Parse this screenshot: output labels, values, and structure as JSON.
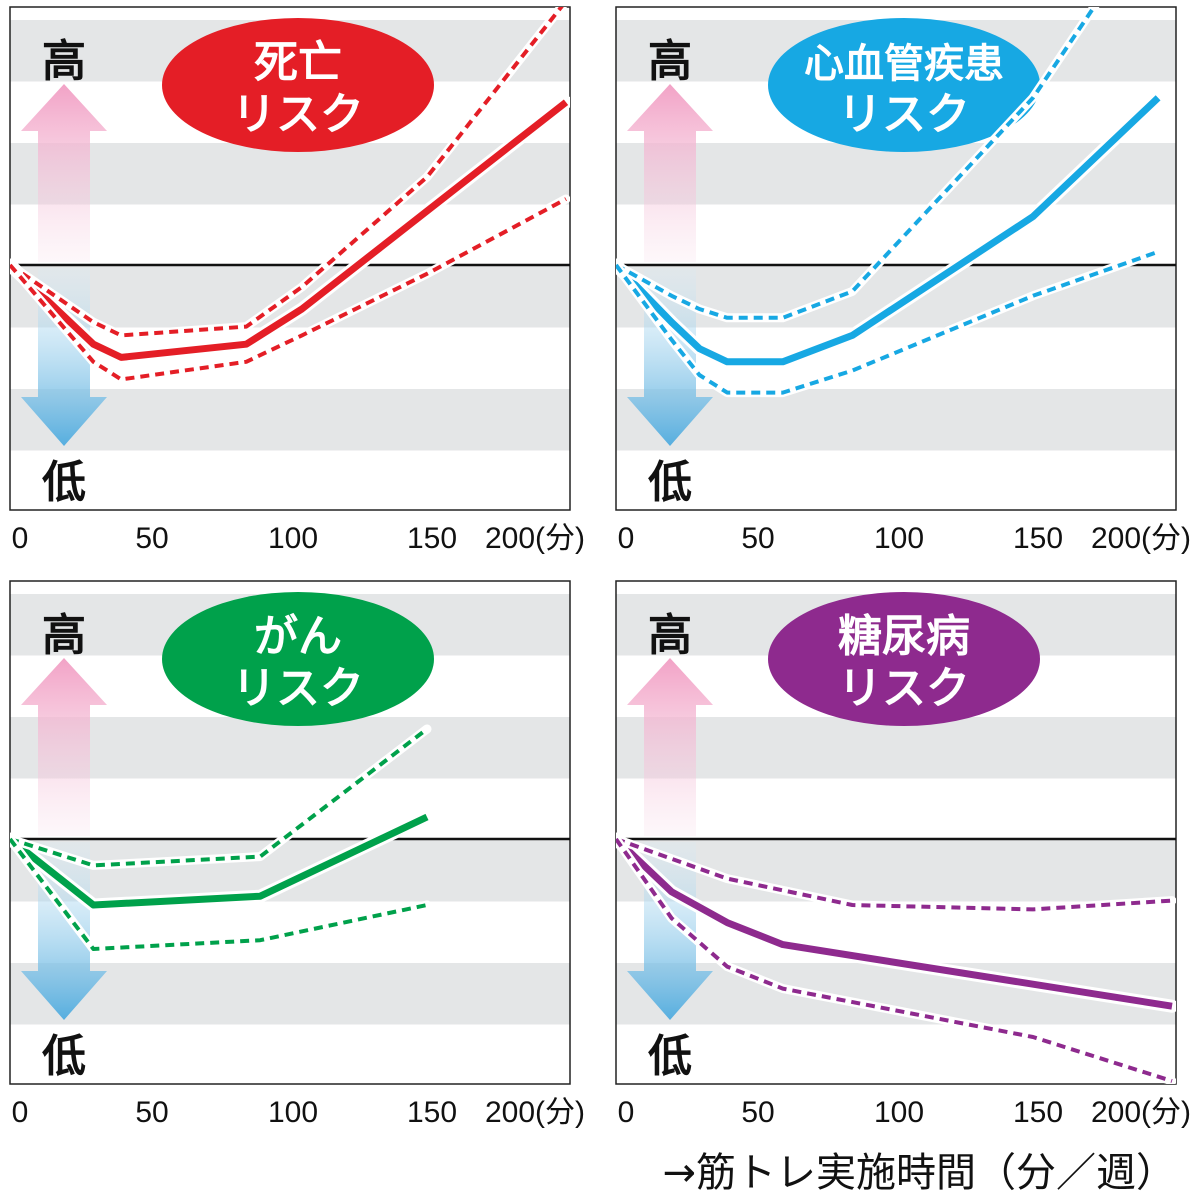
{
  "high_label": "高",
  "low_label": "低",
  "x_axis_caption": "→筋トレ実施時間（分／週）",
  "colors": {
    "red": "#e41e26",
    "blue": "#17a8e3",
    "green": "#00a14b",
    "purple": "#8e2a8e"
  },
  "chart_data": [
    {
      "type": "line",
      "badge": [
        "死亡",
        "リスク"
      ],
      "color": "#e41e26",
      "x_ticks": [
        "0",
        "50",
        "100",
        "150",
        "200(分)"
      ],
      "series": [
        {
          "role": "estimate",
          "x": [
            0,
            30,
            40,
            85,
            105,
            200
          ],
          "y": [
            1.0,
            0.82,
            0.79,
            0.82,
            0.9,
            1.37
          ]
        },
        {
          "role": "upper",
          "x": [
            0,
            30,
            40,
            85,
            105,
            150,
            200
          ],
          "y": [
            1.0,
            0.87,
            0.84,
            0.86,
            0.95,
            1.2,
            1.6
          ]
        },
        {
          "role": "lower",
          "x": [
            0,
            30,
            40,
            85,
            105,
            150,
            200
          ],
          "y": [
            1.0,
            0.78,
            0.74,
            0.78,
            0.84,
            0.98,
            1.15
          ]
        }
      ]
    },
    {
      "type": "line",
      "badge": [
        "心血管疾患",
        "リスク"
      ],
      "color": "#17a8e3",
      "x_ticks": [
        "0",
        "50",
        "100",
        "150",
        "200(分)"
      ],
      "series": [
        {
          "role": "estimate",
          "x": [
            0,
            20,
            30,
            40,
            60,
            85,
            150,
            195
          ],
          "y": [
            1.0,
            0.87,
            0.81,
            0.78,
            0.78,
            0.84,
            1.11,
            1.38
          ]
        },
        {
          "role": "upper",
          "x": [
            0,
            20,
            30,
            40,
            60,
            85,
            150,
            200
          ],
          "y": [
            1.0,
            0.93,
            0.9,
            0.88,
            0.88,
            0.94,
            1.38,
            1.85
          ]
        },
        {
          "role": "lower",
          "x": [
            0,
            20,
            30,
            40,
            60,
            85,
            150,
            195
          ],
          "y": [
            1.0,
            0.83,
            0.75,
            0.71,
            0.71,
            0.76,
            0.93,
            1.03
          ]
        }
      ]
    },
    {
      "type": "line",
      "badge": [
        "がん",
        "リスク"
      ],
      "color": "#00a14b",
      "x_ticks": [
        "0",
        "50",
        "100",
        "150",
        "200(分)"
      ],
      "series": [
        {
          "role": "estimate",
          "x": [
            0,
            30,
            90,
            150
          ],
          "y": [
            1.0,
            0.85,
            0.87,
            1.05
          ]
        },
        {
          "role": "upper",
          "x": [
            0,
            30,
            90,
            150
          ],
          "y": [
            1.0,
            0.94,
            0.96,
            1.25
          ]
        },
        {
          "role": "lower",
          "x": [
            0,
            30,
            90,
            150
          ],
          "y": [
            1.0,
            0.75,
            0.77,
            0.85
          ]
        }
      ]
    },
    {
      "type": "line",
      "badge": [
        "糖尿病",
        "リスク"
      ],
      "color": "#8e2a8e",
      "x_ticks": [
        "0",
        "50",
        "100",
        "150",
        "200(分)"
      ],
      "series": [
        {
          "role": "estimate",
          "x": [
            0,
            20,
            40,
            60,
            200
          ],
          "y": [
            1.0,
            0.88,
            0.81,
            0.76,
            0.62
          ]
        },
        {
          "role": "upper",
          "x": [
            0,
            40,
            85,
            150,
            200
          ],
          "y": [
            1.0,
            0.91,
            0.85,
            0.84,
            0.86
          ]
        },
        {
          "role": "lower",
          "x": [
            0,
            20,
            40,
            60,
            150,
            200
          ],
          "y": [
            1.0,
            0.82,
            0.71,
            0.66,
            0.55,
            0.45
          ]
        }
      ]
    }
  ]
}
